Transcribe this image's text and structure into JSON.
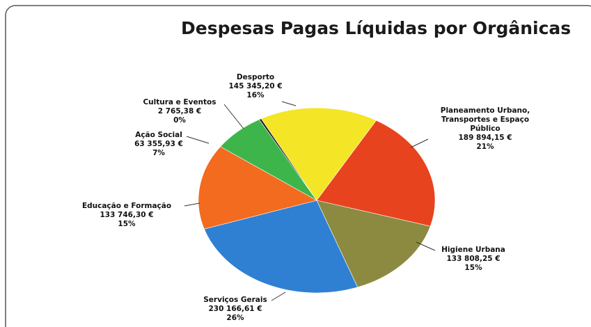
{
  "chart_data": {
    "type": "pie",
    "title": "Despesas Pagas Líquidas por Orgânicas",
    "categories": [
      "Desporto",
      "Planeamento Urbano, Transportes e Espaço Público",
      "Higiene Urbana",
      "Serviços Gerais",
      "Educação e Formação",
      "Ação Social",
      "Cultura e Eventos"
    ],
    "values": [
      145345.2,
      189894.15,
      133808.25,
      230166.61,
      133746.3,
      63355.93,
      2765.38
    ],
    "value_labels": [
      "145 345,20 €",
      "189 894,15 €",
      "133 808,25 €",
      "230 166,61 €",
      "133 746,30 €",
      "63 355,93 €",
      "2 765,38 €"
    ],
    "percent_labels": [
      "16%",
      "21%",
      "15%",
      "26%",
      "15%",
      "7%",
      "0%"
    ],
    "colors": [
      "#f4e526",
      "#e8431f",
      "#8b8a40",
      "#2f80d2",
      "#f26b1f",
      "#3db54b",
      "#222222"
    ]
  }
}
